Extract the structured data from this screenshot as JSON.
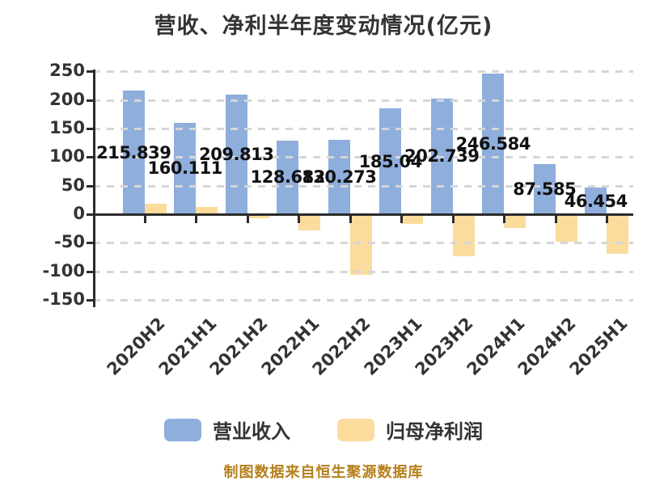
{
  "title": "营收、净利半年度变动情况(亿元)",
  "footer": "制图数据来自恒生聚源数据库",
  "colors": {
    "revenue_bar": "#8EAEDC",
    "profit_bar": "#FBDC9D",
    "title_text": "#333333",
    "value_label_text": "#111111",
    "axis_text": "#333333",
    "footer_text": "#B5801A",
    "gridline": "#D6D6D6",
    "axis_line": "#2B2B2B",
    "background": "#FFFFFF"
  },
  "chart_data": {
    "type": "bar",
    "title": "营收、净利半年度变动情况(亿元)",
    "categories": [
      "2020H2",
      "2021H1",
      "2021H2",
      "2022H1",
      "2022H2",
      "2023H1",
      "2023H2",
      "2024H1",
      "2024H2",
      "2025H1"
    ],
    "series": [
      {
        "name": "营业收入",
        "color": "#8EAEDC",
        "values": [
          215.839,
          160.111,
          209.813,
          128.682,
          130.273,
          185.04,
          202.739,
          246.584,
          87.585,
          46.454
        ],
        "labels": [
          "215.839",
          "160.111",
          "209.813",
          "128.682",
          "130.273",
          "185.04",
          "202.739",
          "246.584",
          "87.585",
          "46.454"
        ],
        "labeled": true
      },
      {
        "name": "归母净利润",
        "color": "#FBDC9D",
        "values": [
          19,
          13,
          -5,
          -27,
          -104,
          -15,
          -72,
          -22,
          -46,
          -68
        ],
        "labeled": false,
        "estimated": true
      }
    ],
    "xlabel": "",
    "ylabel": "",
    "ylim": [
      -150,
      250
    ],
    "y_ticks": [
      250,
      200,
      150,
      100,
      50,
      0,
      -50,
      -100,
      -150
    ],
    "grid": "horizontal dashed",
    "legend_position": "bottom",
    "x_label_rotation_deg": 45
  }
}
